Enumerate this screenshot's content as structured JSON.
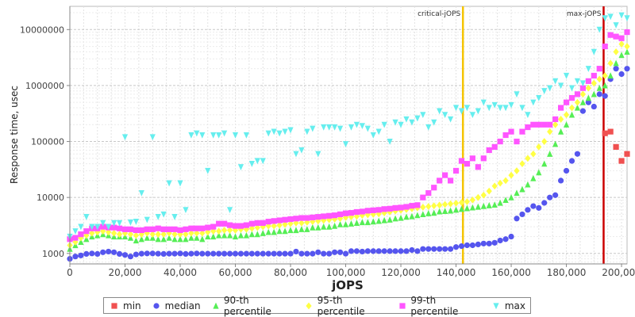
{
  "chart_data": {
    "type": "scatter",
    "title": "",
    "xlabel": "jOPS",
    "ylabel": "Response time, usec",
    "x_range": [
      0,
      202000
    ],
    "y_scale": "log",
    "y_range": [
      650,
      26000000
    ],
    "x_ticks": [
      0,
      20000,
      40000,
      60000,
      80000,
      100000,
      120000,
      140000,
      160000,
      180000,
      200000
    ],
    "x_tick_labels": [
      "0",
      "20,000",
      "40,000",
      "60,000",
      "80,000",
      "100,000",
      "120,000",
      "140,000",
      "160,000",
      "180,000",
      "200,000"
    ],
    "y_ticks": [
      1000,
      10000,
      100000,
      1000000,
      10000000
    ],
    "y_tick_labels": [
      "1000",
      "10000",
      "100000",
      "1000000",
      "10000000"
    ],
    "grid": true,
    "legend_position": "bottom",
    "vlines": [
      {
        "label": "critical-jOPS",
        "x": 142500,
        "color": "#f5c400"
      },
      {
        "label": "max-jOPS",
        "x": 193500,
        "color": "#cc0000"
      }
    ],
    "x_points": [
      0,
      2000,
      4000,
      6000,
      8000,
      10000,
      12000,
      14000,
      16000,
      18000,
      20000,
      22000,
      24000,
      26000,
      28000,
      30000,
      32000,
      34000,
      36000,
      38000,
      40000,
      42000,
      44000,
      46000,
      48000,
      50000,
      52000,
      54000,
      56000,
      58000,
      60000,
      62000,
      64000,
      66000,
      68000,
      70000,
      72000,
      74000,
      76000,
      78000,
      80000,
      82000,
      84000,
      86000,
      88000,
      90000,
      92000,
      94000,
      96000,
      98000,
      100000,
      102000,
      104000,
      106000,
      108000,
      110000,
      112000,
      114000,
      116000,
      118000,
      120000,
      122000,
      124000,
      126000,
      128000,
      130000,
      132000,
      134000,
      136000,
      138000,
      140000,
      142000,
      144000,
      146000,
      148000,
      150000,
      152000,
      154000,
      156000,
      158000,
      160000,
      162000,
      164000,
      166000,
      168000,
      170000,
      172000,
      174000,
      176000,
      178000,
      180000,
      182000,
      184000,
      186000,
      188000,
      190000,
      192000,
      194000,
      196000,
      198000,
      200000,
      202000
    ],
    "series": [
      {
        "name": "min",
        "color": "#f05050",
        "marker": "square",
        "values": [
          null,
          null,
          null,
          null,
          null,
          null,
          null,
          null,
          null,
          null,
          null,
          null,
          null,
          null,
          null,
          null,
          null,
          null,
          null,
          null,
          null,
          null,
          null,
          null,
          null,
          null,
          null,
          null,
          null,
          null,
          null,
          null,
          null,
          null,
          null,
          null,
          null,
          null,
          null,
          null,
          null,
          null,
          null,
          null,
          null,
          null,
          null,
          null,
          null,
          null,
          null,
          null,
          null,
          null,
          null,
          null,
          null,
          null,
          null,
          null,
          null,
          null,
          null,
          null,
          null,
          null,
          null,
          null,
          null,
          null,
          null,
          null,
          null,
          null,
          null,
          null,
          null,
          null,
          null,
          null,
          null,
          null,
          null,
          null,
          null,
          null,
          null,
          null,
          null,
          null,
          null,
          null,
          null,
          null,
          null,
          null,
          null,
          140000,
          150000,
          80000,
          45000,
          60000
        ]
      },
      {
        "name": "median",
        "color": "#5555ee",
        "marker": "circle",
        "values": [
          800,
          880,
          920,
          980,
          1000,
          980,
          1050,
          1080,
          1050,
          980,
          940,
          880,
          960,
          990,
          1000,
          1000,
          990,
          980,
          990,
          990,
          1000,
          980,
          990,
          1000,
          990,
          990,
          990,
          990,
          990,
          990,
          990,
          990,
          990,
          990,
          990,
          990,
          990,
          990,
          990,
          990,
          990,
          1080,
          990,
          990,
          990,
          1050,
          990,
          990,
          1050,
          1050,
          990,
          1100,
          1100,
          1080,
          1100,
          1100,
          1100,
          1100,
          1100,
          1100,
          1100,
          1100,
          1150,
          1100,
          1200,
          1200,
          1200,
          1200,
          1200,
          1200,
          1300,
          1350,
          1400,
          1400,
          1450,
          1500,
          1500,
          1550,
          1700,
          1800,
          2000,
          4200,
          5000,
          6000,
          7000,
          6500,
          8000,
          10000,
          11000,
          20000,
          30000,
          45000,
          60000,
          350000,
          500000,
          420000,
          700000,
          650000,
          1300000,
          2000000,
          1600000,
          2000000
        ]
      },
      {
        "name": "90-th percentile",
        "color": "#55ee55",
        "marker": "triangle-up",
        "values": [
          1200,
          1400,
          1600,
          1800,
          2000,
          2100,
          2200,
          2100,
          2000,
          2000,
          2000,
          1900,
          1700,
          1800,
          1900,
          1900,
          1800,
          1800,
          1900,
          1800,
          1800,
          1800,
          1900,
          1900,
          1800,
          2000,
          2000,
          2100,
          2100,
          2100,
          2000,
          2100,
          2100,
          2200,
          2200,
          2300,
          2400,
          2400,
          2500,
          2500,
          2600,
          2600,
          2700,
          2700,
          2900,
          2900,
          3000,
          3000,
          3100,
          3300,
          3300,
          3400,
          3500,
          3600,
          3600,
          3700,
          3800,
          3900,
          4000,
          4200,
          4300,
          4500,
          4600,
          4800,
          5000,
          5200,
          5300,
          5600,
          5700,
          5800,
          6000,
          6200,
          6400,
          6600,
          6800,
          7000,
          7200,
          7400,
          8000,
          9000,
          10000,
          12000,
          14000,
          17000,
          22000,
          28000,
          40000,
          60000,
          90000,
          150000,
          200000,
          300000,
          400000,
          500000,
          600000,
          700000,
          900000,
          1000000,
          1500000,
          2500000,
          3500000,
          4000000
        ]
      },
      {
        "name": "95-th percentile",
        "color": "#ffff44",
        "marker": "diamond",
        "values": [
          1400,
          1600,
          1900,
          2100,
          2300,
          2400,
          2500,
          2400,
          2300,
          2200,
          2300,
          2200,
          2100,
          2200,
          2300,
          2200,
          2200,
          2200,
          2300,
          2200,
          2200,
          2200,
          2300,
          2300,
          2300,
          2400,
          2500,
          2500,
          2600,
          2600,
          2600,
          2700,
          2700,
          2800,
          2900,
          3000,
          3100,
          3100,
          3200,
          3300,
          3400,
          3500,
          3500,
          3600,
          3700,
          3800,
          3900,
          4000,
          4100,
          4200,
          4400,
          4500,
          4600,
          4800,
          4900,
          5000,
          5100,
          5300,
          5500,
          5700,
          5900,
          6100,
          6300,
          6500,
          6700,
          6900,
          7100,
          7300,
          7500,
          7700,
          7900,
          8100,
          8400,
          9000,
          10000,
          11000,
          13000,
          16000,
          18000,
          20000,
          25000,
          30000,
          40000,
          50000,
          60000,
          80000,
          100000,
          150000,
          200000,
          250000,
          300000,
          400000,
          500000,
          700000,
          900000,
          1100000,
          1300000,
          1500000,
          2500000,
          4000000,
          5500000,
          5000000
        ]
      },
      {
        "name": "99-th percentile",
        "color": "#ff55ff",
        "marker": "square",
        "values": [
          1800,
          1900,
          2200,
          2500,
          2800,
          2800,
          3000,
          2900,
          2900,
          2800,
          2700,
          2700,
          2600,
          2600,
          2700,
          2700,
          2800,
          2700,
          2700,
          2700,
          2600,
          2700,
          2800,
          2800,
          2800,
          2900,
          3000,
          3400,
          3400,
          3200,
          3100,
          3100,
          3200,
          3400,
          3500,
          3500,
          3700,
          3800,
          3900,
          4000,
          4100,
          4200,
          4300,
          4300,
          4400,
          4500,
          4600,
          4700,
          4800,
          5000,
          5200,
          5300,
          5500,
          5600,
          5800,
          5900,
          6000,
          6200,
          6300,
          6500,
          6600,
          6800,
          7100,
          7300,
          10000,
          12000,
          15000,
          20000,
          25000,
          20000,
          30000,
          45000,
          40000,
          50000,
          35000,
          50000,
          70000,
          80000,
          100000,
          130000,
          150000,
          100000,
          150000,
          180000,
          200000,
          200000,
          200000,
          200000,
          250000,
          400000,
          500000,
          600000,
          700000,
          900000,
          1200000,
          1500000,
          2000000,
          5000000,
          8000000,
          7500000,
          7000000,
          9000000
        ]
      },
      {
        "name": "max",
        "color": "#66eeee",
        "marker": "triangle-down",
        "values": [
          2000,
          2500,
          3000,
          4500,
          3000,
          3000,
          3500,
          3000,
          3500,
          3500,
          120000,
          3600,
          3700,
          12000,
          4000,
          120000,
          4500,
          5000,
          18000,
          4500,
          18000,
          6000,
          130000,
          140000,
          130000,
          30000,
          130000,
          130000,
          140000,
          6000,
          130000,
          35000,
          130000,
          40000,
          45000,
          45000,
          140000,
          150000,
          140000,
          150000,
          160000,
          60000,
          70000,
          150000,
          170000,
          60000,
          180000,
          180000,
          180000,
          170000,
          90000,
          180000,
          200000,
          190000,
          170000,
          130000,
          150000,
          200000,
          100000,
          220000,
          200000,
          250000,
          220000,
          260000,
          300000,
          180000,
          220000,
          350000,
          300000,
          250000,
          400000,
          350000,
          400000,
          300000,
          350000,
          500000,
          400000,
          450000,
          400000,
          400000,
          450000,
          700000,
          400000,
          300000,
          500000,
          600000,
          800000,
          900000,
          1200000,
          1000000,
          1500000,
          900000,
          1200000,
          1100000,
          2000000,
          4000000,
          10000000,
          16000000,
          17000000,
          12000000,
          18000000,
          16000000
        ]
      }
    ]
  }
}
